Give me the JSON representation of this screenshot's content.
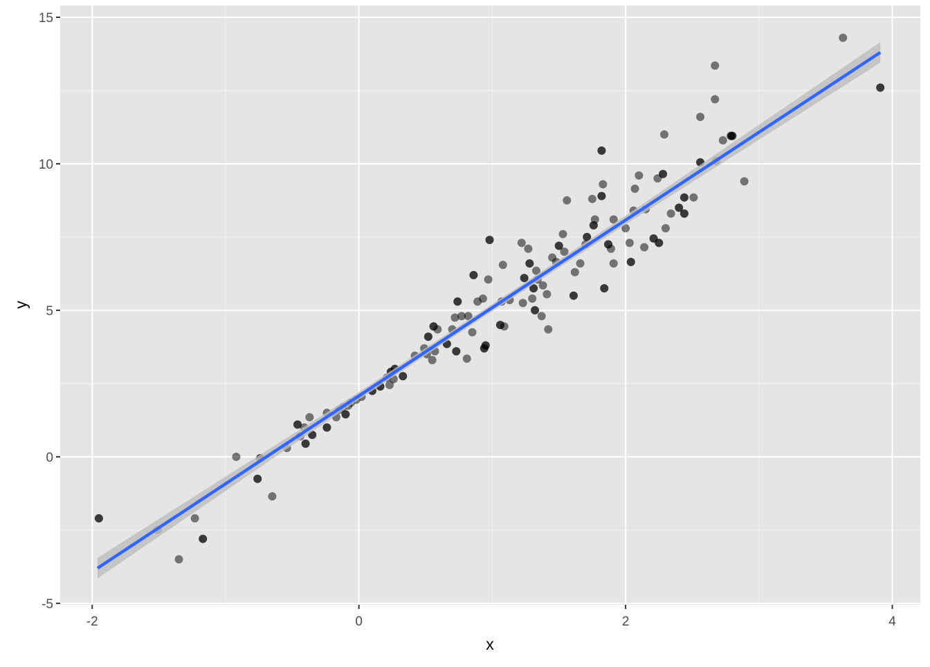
{
  "chart_data": {
    "type": "scatter",
    "x_label": "x",
    "y_label": "y",
    "xlim": [
      -2.24,
      4.21
    ],
    "ylim": [
      -5.05,
      15.4
    ],
    "xticks": [
      -2,
      0,
      2,
      4
    ],
    "yticks": [
      -5,
      0,
      5,
      10,
      15
    ],
    "grid": true,
    "point_color": "#000000",
    "line_color": "#3366ff",
    "band_color": "#bdbdbd",
    "x": [
      -1.95,
      -1.95,
      -1.51,
      -1.35,
      -1.23,
      -1.17,
      -1.17,
      -0.92,
      -0.76,
      -0.76,
      -0.74,
      -0.74,
      -0.65,
      -0.54,
      -0.46,
      -0.46,
      -0.44,
      -0.41,
      -0.4,
      -0.4,
      -0.37,
      -0.35,
      -0.35,
      -0.24,
      -0.24,
      -0.24,
      -0.17,
      -0.15,
      -0.12,
      -0.1,
      -0.1,
      -0.08,
      -0.06,
      -0.02,
      0.02,
      0.1,
      0.1,
      0.16,
      0.16,
      0.21,
      0.23,
      0.24,
      0.24,
      0.26,
      0.27,
      0.27,
      0.33,
      0.33,
      0.42,
      0.49,
      0.51,
      0.52,
      0.52,
      0.55,
      0.56,
      0.56,
      0.57,
      0.59,
      0.66,
      0.66,
      0.7,
      0.72,
      0.73,
      0.73,
      0.74,
      0.74,
      0.77,
      0.81,
      0.82,
      0.85,
      0.86,
      0.86,
      0.89,
      0.93,
      0.94,
      0.94,
      0.95,
      0.95,
      0.97,
      0.98,
      0.98,
      1.06,
      1.06,
      1.07,
      1.08,
      1.09,
      1.13,
      1.22,
      1.23,
      1.24,
      1.24,
      1.27,
      1.28,
      1.28,
      1.3,
      1.31,
      1.31,
      1.32,
      1.32,
      1.33,
      1.34,
      1.37,
      1.38,
      1.41,
      1.42,
      1.45,
      1.48,
      1.5,
      1.5,
      1.53,
      1.54,
      1.56,
      1.61,
      1.61,
      1.62,
      1.66,
      1.7,
      1.71,
      1.71,
      1.75,
      1.76,
      1.76,
      1.77,
      1.82,
      1.82,
      1.82,
      1.82,
      1.83,
      1.84,
      1.84,
      1.87,
      1.87,
      1.89,
      1.91,
      1.91,
      2.0,
      2.03,
      2.04,
      2.04,
      2.06,
      2.07,
      2.1,
      2.14,
      2.15,
      2.21,
      2.21,
      2.24,
      2.25,
      2.25,
      2.28,
      2.28,
      2.29,
      2.3,
      2.34,
      2.4,
      2.4,
      2.44,
      2.44,
      2.44,
      2.44,
      2.51,
      2.56,
      2.56,
      2.56,
      2.67,
      2.67,
      2.68,
      2.73,
      2.79,
      2.79,
      2.8,
      2.8,
      2.89,
      3.63,
      3.91,
      3.91
    ],
    "y": [
      -2.1,
      -2.1,
      -2.5,
      -3.5,
      -2.1,
      -2.8,
      -2.8,
      0.0,
      -0.75,
      -0.75,
      -0.05,
      -0.05,
      -1.35,
      0.3,
      1.1,
      1.1,
      0.7,
      1.0,
      0.45,
      0.45,
      1.35,
      0.75,
      0.75,
      1.0,
      1.0,
      1.5,
      1.35,
      1.6,
      1.7,
      1.45,
      1.45,
      1.75,
      1.85,
      1.95,
      2.05,
      2.25,
      2.25,
      2.4,
      2.4,
      2.7,
      2.45,
      2.9,
      2.9,
      2.65,
      3.0,
      3.0,
      2.75,
      2.75,
      3.45,
      3.7,
      3.5,
      4.1,
      4.1,
      3.3,
      4.45,
      4.45,
      3.6,
      4.35,
      3.85,
      3.85,
      4.35,
      4.75,
      3.6,
      3.6,
      5.3,
      5.3,
      4.8,
      3.35,
      4.8,
      4.25,
      6.2,
      6.2,
      5.3,
      5.4,
      3.7,
      3.7,
      3.8,
      3.8,
      6.05,
      7.4,
      7.4,
      4.5,
      4.5,
      5.3,
      6.55,
      4.45,
      5.35,
      7.3,
      5.25,
      6.1,
      6.1,
      7.1,
      6.6,
      6.6,
      5.4,
      5.75,
      5.75,
      5.0,
      5.0,
      6.35,
      6.05,
      4.8,
      5.85,
      5.55,
      4.35,
      6.8,
      6.65,
      7.2,
      7.2,
      7.6,
      7.0,
      8.75,
      5.5,
      5.5,
      6.3,
      6.6,
      7.25,
      7.5,
      7.5,
      8.8,
      7.9,
      7.9,
      8.1,
      10.45,
      10.45,
      8.9,
      8.9,
      9.3,
      5.75,
      5.75,
      7.25,
      7.25,
      7.1,
      8.1,
      6.6,
      7.8,
      7.3,
      6.65,
      6.65,
      8.4,
      9.15,
      9.6,
      7.15,
      8.45,
      7.45,
      7.45,
      9.5,
      7.3,
      7.3,
      9.65,
      9.65,
      11.0,
      7.8,
      8.3,
      8.5,
      8.5,
      8.85,
      8.85,
      8.3,
      8.3,
      8.85,
      11.6,
      10.05,
      10.05,
      13.35,
      12.2,
      10.1,
      10.8,
      10.95,
      10.95,
      10.95,
      10.95,
      9.4,
      14.3,
      12.6,
      12.6
    ],
    "fit": {
      "x": [
        -1.96,
        0.0,
        0.97,
        2.0,
        3.91
      ],
      "y": [
        -3.8,
        2.08,
        5.0,
        8.08,
        13.8
      ],
      "lower": [
        -4.15,
        1.95,
        4.88,
        7.93,
        13.45
      ],
      "upper": [
        -3.45,
        2.21,
        5.12,
        8.23,
        14.15
      ]
    }
  }
}
